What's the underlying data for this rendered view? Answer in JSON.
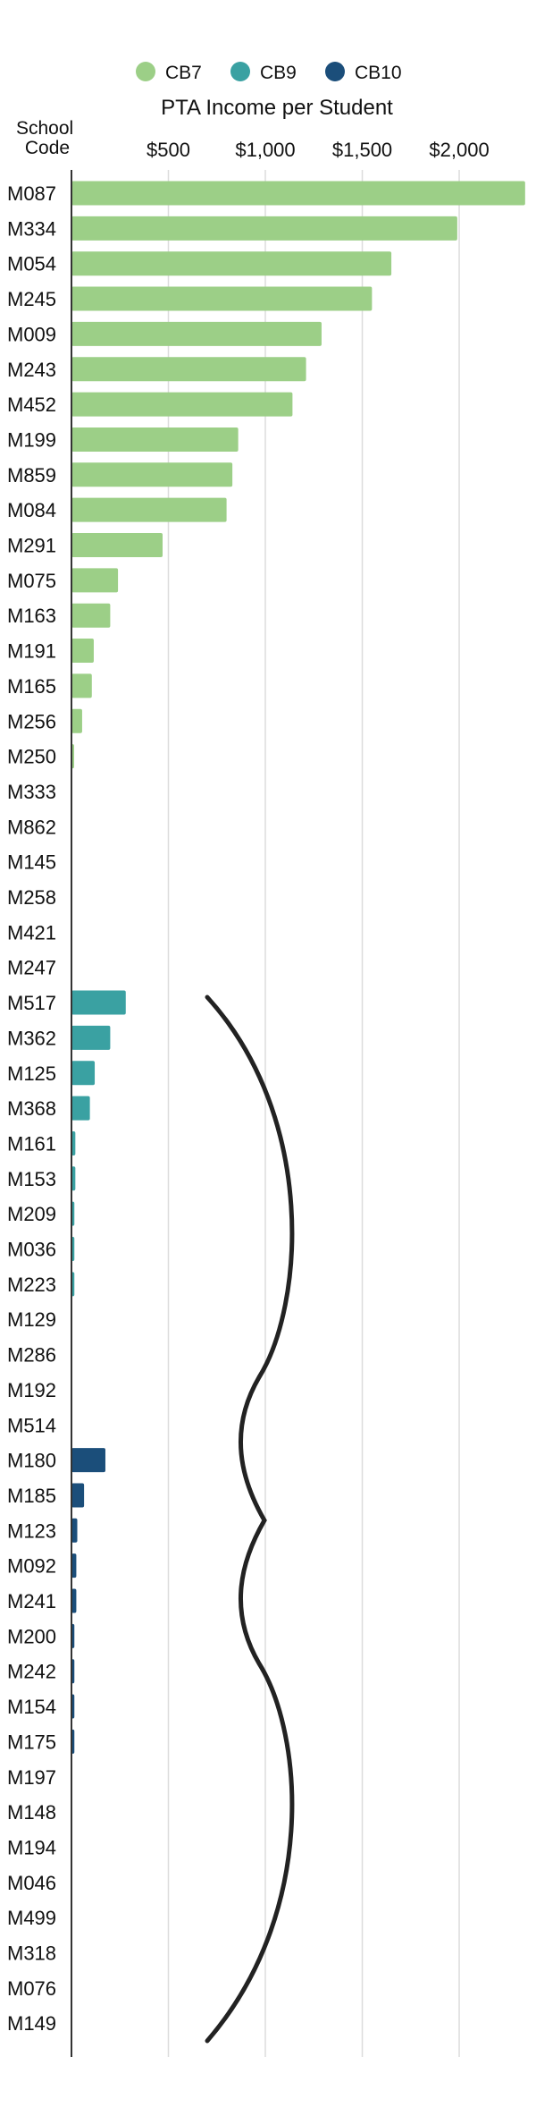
{
  "chart_data": {
    "type": "bar",
    "orientation": "horizontal",
    "xlabel": "PTA Income per Student",
    "ylabel": "School Code",
    "xlim": [
      0,
      2350
    ],
    "xticks": [
      500,
      1000,
      1500,
      2000
    ],
    "xtick_labels": [
      "$500",
      "$1,000",
      "$1,500",
      "$2,000"
    ],
    "grid": "vertical",
    "legend_position": "top",
    "legend": [
      {
        "name": "CB7",
        "color": "#9ccf87"
      },
      {
        "name": "CB9",
        "color": "#3aa1a2"
      },
      {
        "name": "CB10",
        "color": "#1b4e7a"
      }
    ],
    "series": [
      {
        "name": "CB7",
        "color": "#9ccf87",
        "categories": [
          "M087",
          "M334",
          "M054",
          "M245",
          "M009",
          "M243",
          "M452",
          "M199",
          "M859",
          "M084",
          "M291",
          "M075",
          "M163",
          "M191",
          "M165",
          "M256",
          "M250",
          "M333",
          "M862",
          "M145",
          "M258",
          "M421",
          "M247"
        ],
        "values": [
          2340,
          1990,
          1650,
          1550,
          1290,
          1210,
          1140,
          860,
          830,
          800,
          470,
          240,
          200,
          115,
          105,
          55,
          10,
          0,
          0,
          0,
          0,
          0,
          0
        ]
      },
      {
        "name": "CB9",
        "color": "#3aa1a2",
        "categories": [
          "M517",
          "M362",
          "M125",
          "M368",
          "M161",
          "M153",
          "M209",
          "M036",
          "M223",
          "M129",
          "M286",
          "M192",
          "M514"
        ],
        "values": [
          280,
          200,
          120,
          95,
          20,
          20,
          15,
          15,
          15,
          0,
          0,
          0,
          0
        ]
      },
      {
        "name": "CB10",
        "color": "#1b4e7a",
        "categories": [
          "M180",
          "M185",
          "M123",
          "M092",
          "M241",
          "M200",
          "M242",
          "M154",
          "M175",
          "M197",
          "M148",
          "M194",
          "M046",
          "M499",
          "M318",
          "M076",
          "M149"
        ],
        "values": [
          175,
          65,
          30,
          25,
          25,
          15,
          15,
          15,
          15,
          0,
          0,
          0,
          0,
          0,
          0,
          0,
          0
        ]
      }
    ],
    "annotations": [
      "curly brace spanning CB9 and CB10 groups"
    ]
  }
}
